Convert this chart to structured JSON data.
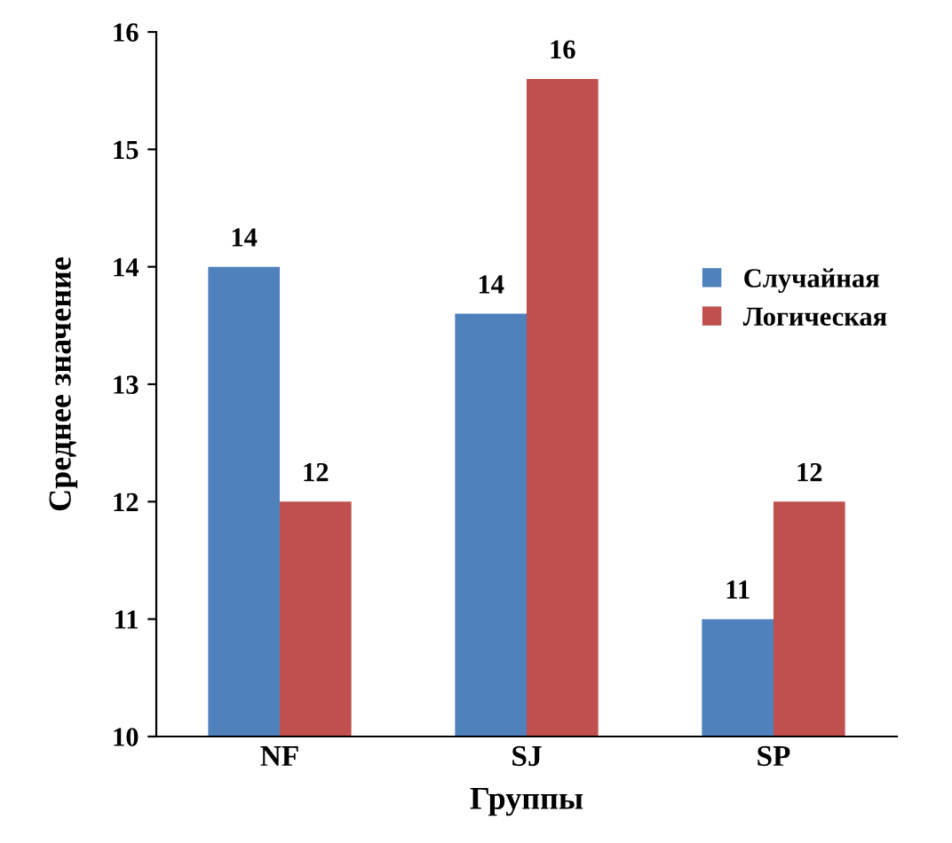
{
  "chart_data": {
    "type": "bar",
    "xlabel": "Группы",
    "ylabel": "Среднее значение",
    "categories": [
      "NF",
      "SJ",
      "SP"
    ],
    "series": [
      {
        "name": "Случайная",
        "color": "#4f81bd",
        "values": [
          14,
          13.6,
          11
        ],
        "value_labels": [
          "14",
          "14",
          "11"
        ]
      },
      {
        "name": "Логическая",
        "color": "#c0504d",
        "values": [
          12,
          15.6,
          12
        ],
        "value_labels": [
          "12",
          "16",
          "12"
        ]
      }
    ],
    "ylim": [
      10,
      16
    ],
    "yticks": [
      10,
      11,
      12,
      13,
      14,
      15,
      16
    ],
    "grid": false,
    "legend": "right"
  }
}
